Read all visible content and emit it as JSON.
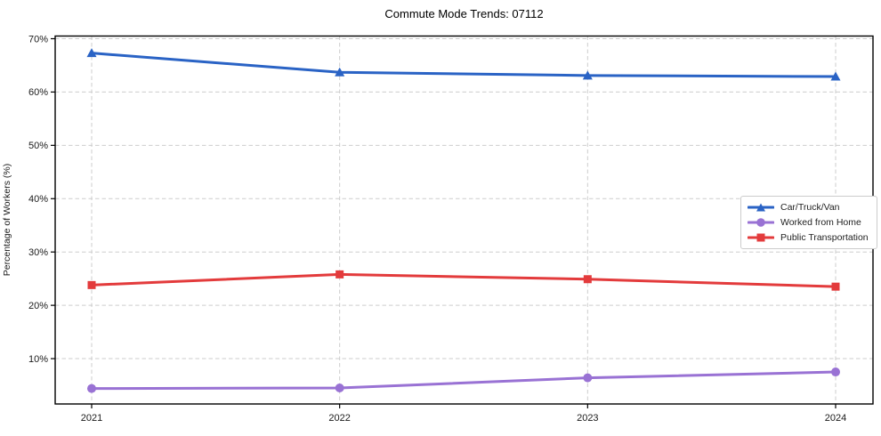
{
  "figure": {
    "title": "Commute Mode Trends: 07112",
    "ylabel": "Percentage of Workers (%)"
  },
  "colors": {
    "background": "#ffffff",
    "axis_spine": "#000000",
    "grid": "#cdcdcd",
    "tick_text": "#1a1a1a",
    "legend_border": "#cccccc",
    "series_blue": "#2a63c5",
    "series_purple": "#9972d4",
    "series_red": "#e33b3c"
  },
  "chart_data": {
    "type": "line",
    "title": "Commute Mode Trends: 07112",
    "xlabel": "",
    "ylabel": "Percentage of Workers (%)",
    "x": [
      2021,
      2022,
      2023,
      2024
    ],
    "x_tick_labels": [
      "2021",
      "2022",
      "2023",
      "2024"
    ],
    "y_ticks": [
      10,
      20,
      30,
      40,
      50,
      60,
      70
    ],
    "y_tick_labels": [
      "10%",
      "20%",
      "30%",
      "40%",
      "50%",
      "60%",
      "70%"
    ],
    "ylim": [
      1.5,
      70.5
    ],
    "grid": "dashed-both-axes",
    "legend_position": "center-right",
    "series": [
      {
        "name": "Car/Truck/Van",
        "color": "#2a63c5",
        "marker": "triangle",
        "values": [
          67.3,
          63.7,
          63.1,
          62.9
        ]
      },
      {
        "name": "Worked from Home",
        "color": "#9972d4",
        "marker": "circle",
        "values": [
          4.4,
          4.5,
          6.4,
          7.5
        ]
      },
      {
        "name": "Public Transportation",
        "color": "#e33b3c",
        "marker": "square",
        "values": [
          23.8,
          25.8,
          24.9,
          23.5
        ]
      }
    ]
  }
}
